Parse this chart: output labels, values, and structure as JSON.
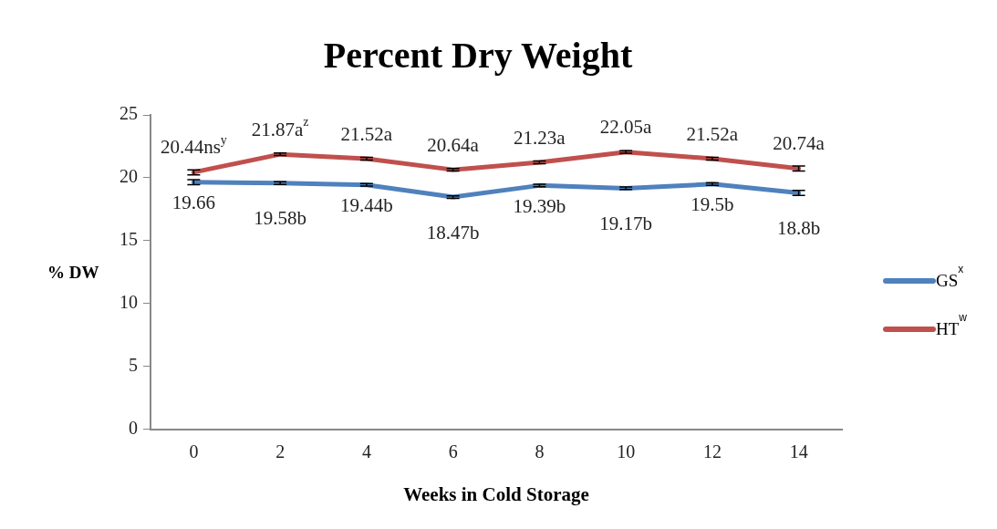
{
  "chart_data": {
    "type": "line",
    "title": "Percent Dry Weight",
    "xlabel": "Weeks in Cold Storage",
    "ylabel": "% DW",
    "categories": [
      "0",
      "2",
      "4",
      "6",
      "8",
      "10",
      "12",
      "14"
    ],
    "ylim": [
      0,
      25
    ],
    "yticks": [
      0,
      5,
      10,
      15,
      20,
      25
    ],
    "grid": false,
    "legend": "right",
    "marker": "none",
    "line_style": "solid",
    "series": [
      {
        "name": "GS$^{x}$",
        "color": "#4f81bd",
        "values": [
          19.66,
          19.58,
          19.44,
          18.47,
          19.39,
          19.17,
          19.5,
          18.8
        ],
        "errors": [
          0.2,
          0.1,
          0.1,
          0.1,
          0.1,
          0.1,
          0.1,
          0.2
        ],
        "value_labels": [
          "19.66",
          "19.58b",
          "19.44b",
          "18.47b",
          "19.39b",
          "19.17b",
          "19.5b",
          "18.8b"
        ]
      },
      {
        "name": "HT$^{w}$",
        "color": "#c0504d",
        "values": [
          20.44,
          21.87,
          21.52,
          20.64,
          21.23,
          22.05,
          21.52,
          20.74
        ],
        "errors": [
          0.2,
          0.1,
          0.1,
          0.1,
          0.1,
          0.1,
          0.1,
          0.2
        ],
        "value_labels": [
          "20.44ns$^{y}$",
          "21.87a$^{z}$",
          "21.52a",
          "20.64a",
          "21.23a",
          "22.05a",
          "21.52a",
          "20.74a"
        ]
      }
    ]
  }
}
